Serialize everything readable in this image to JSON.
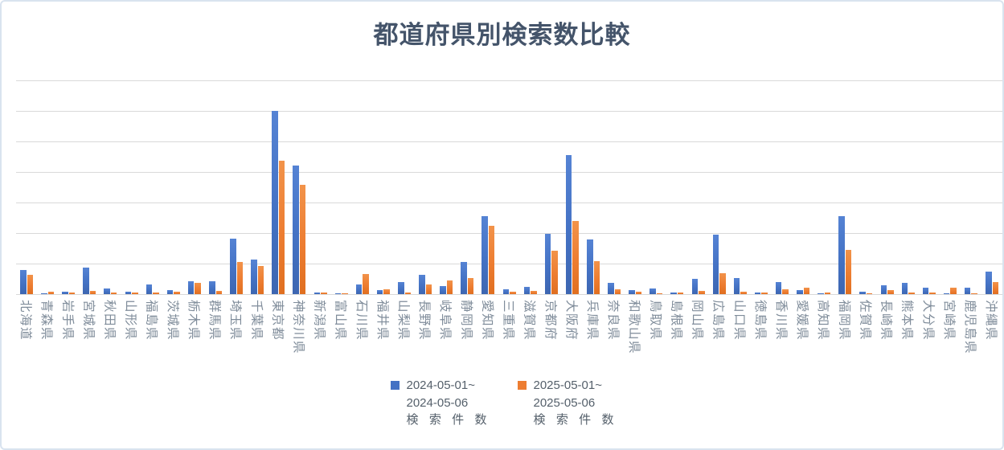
{
  "chart": {
    "title": "都道府県別検索数比較",
    "colors": {
      "series_2024": "#4472C4",
      "series_2025": "#ED7D31",
      "gridline": "#D9D9D9",
      "title_text": "#44546A",
      "axis_label_text": "#7F8C9A",
      "legend_text": "#55606B",
      "frame_border": "#D9E3EF"
    }
  },
  "chart_data": {
    "type": "bar",
    "title": "都道府県別検索数比較",
    "xlabel": "",
    "ylabel": "",
    "ylim": [
      0,
      700
    ],
    "gridline_interval": 100,
    "grid": true,
    "y_tick_labels_visible": false,
    "legend_position": "bottom",
    "categories": [
      "北海道",
      "青森県",
      "岩手県",
      "宮城県",
      "秋田県",
      "山形県",
      "福島県",
      "茨城県",
      "栃木県",
      "群馬県",
      "埼玉県",
      "千葉県",
      "東京都",
      "神奈川県",
      "新潟県",
      "富山県",
      "石川県",
      "福井県",
      "山梨県",
      "長野県",
      "岐阜県",
      "静岡県",
      "愛知県",
      "三重県",
      "滋賀県",
      "京都府",
      "大阪府",
      "兵庫県",
      "奈良県",
      "和歌山県",
      "鳥取県",
      "島根県",
      "岡山県",
      "広島県",
      "山口県",
      "徳島県",
      "香川県",
      "愛媛県",
      "高知県",
      "福岡県",
      "佐賀県",
      "長崎県",
      "熊本県",
      "大分県",
      "宮崎県",
      "鹿児島県",
      "沖縄県"
    ],
    "series": [
      {
        "name": "2024-05-01~2024-05-06 検索件数",
        "legend_lines": [
          "2024-05-01~",
          "2024-05-06",
          "検索件数"
        ],
        "color": "#4472C4",
        "values": [
          80,
          3,
          7,
          88,
          18,
          8,
          32,
          13,
          41,
          42,
          182,
          114,
          600,
          420,
          5,
          2,
          32,
          12,
          39,
          63,
          27,
          104,
          255,
          15,
          23,
          197,
          456,
          180,
          38,
          14,
          18,
          5,
          49,
          195,
          53,
          5,
          40,
          14,
          2,
          255,
          9,
          30,
          38,
          22,
          2,
          20,
          73
        ]
      },
      {
        "name": "2025-05-01~2025-05-06 検索件数",
        "legend_lines": [
          "2025-05-01~",
          "2025-05-06",
          "検索件数"
        ],
        "color": "#ED7D31",
        "values": [
          62,
          9,
          4,
          10,
          4,
          4,
          5,
          8,
          38,
          10,
          105,
          93,
          438,
          359,
          4,
          2,
          65,
          15,
          5,
          31,
          44,
          53,
          225,
          8,
          10,
          142,
          240,
          107,
          15,
          9,
          2,
          5,
          11,
          68,
          9,
          6,
          16,
          22,
          6,
          145,
          2,
          14,
          5,
          4,
          20,
          2,
          40
        ]
      }
    ]
  }
}
